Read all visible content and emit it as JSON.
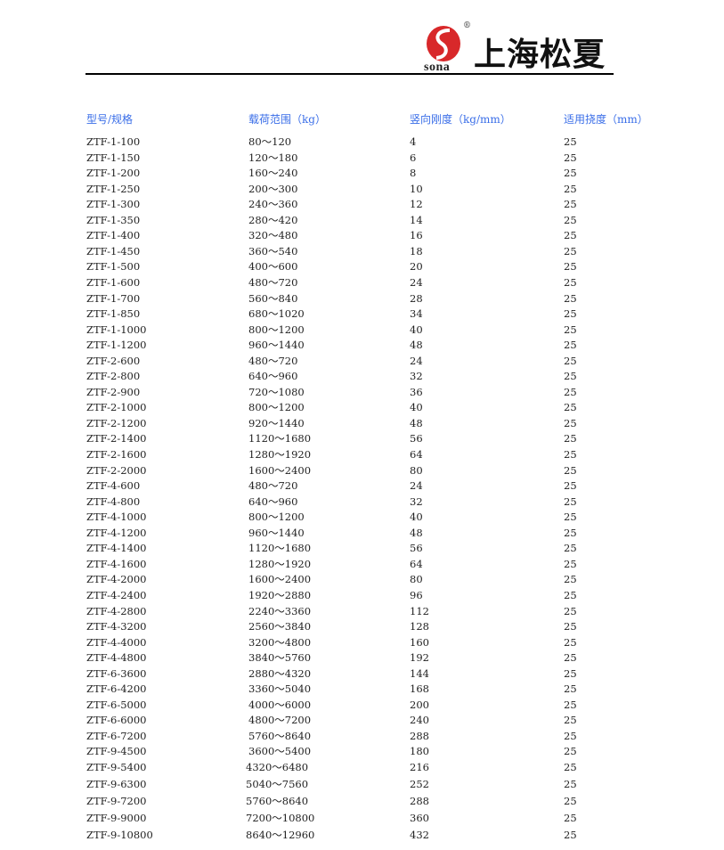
{
  "header": {
    "brand_text": "上海松夏",
    "logo_text": "sona",
    "registered": "®",
    "brand_color": "#d8282a"
  },
  "table": {
    "columns": [
      "型号/规格",
      "载荷范围（kg）",
      "竖向刚度（kg/mm）",
      "适用挠度（mm）"
    ],
    "header_color": "#3a6ee8",
    "rows": [
      [
        "ZTF-1-100",
        "80～120",
        "4",
        "25"
      ],
      [
        "ZTF-1-150",
        "120～180",
        "6",
        "25"
      ],
      [
        "ZTF-1-200",
        "160～240",
        "8",
        "25"
      ],
      [
        "ZTF-1-250",
        "200～300",
        "10",
        "25"
      ],
      [
        "ZTF-1-300",
        "240～360",
        "12",
        "25"
      ],
      [
        "ZTF-1-350",
        "280～420",
        "14",
        "25"
      ],
      [
        "ZTF-1-400",
        "320～480",
        "16",
        "25"
      ],
      [
        "ZTF-1-450",
        "360～540",
        "18",
        "25"
      ],
      [
        "ZTF-1-500",
        "400～600",
        "20",
        "25"
      ],
      [
        "ZTF-1-600",
        "480～720",
        "24",
        "25"
      ],
      [
        "ZTF-1-700",
        "560～840",
        "28",
        "25"
      ],
      [
        "ZTF-1-850",
        "680～1020",
        "34",
        "25"
      ],
      [
        "ZTF-1-1000",
        "800～1200",
        "40",
        "25"
      ],
      [
        "ZTF-1-1200",
        "960～1440",
        "48",
        "25"
      ],
      [
        "ZTF-2-600",
        "480～720",
        "24",
        "25"
      ],
      [
        "ZTF-2-800",
        "640～960",
        "32",
        "25"
      ],
      [
        "ZTF-2-900",
        "720～1080",
        "36",
        "25"
      ],
      [
        "ZTF-2-1000",
        "800～1200",
        "40",
        "25"
      ],
      [
        "ZTF-2-1200",
        "920～1440",
        "48",
        "25"
      ],
      [
        "ZTF-2-1400",
        "1120～1680",
        "56",
        "25"
      ],
      [
        "ZTF-2-1600",
        "1280～1920",
        "64",
        "25"
      ],
      [
        "ZTF-2-2000",
        "1600～2400",
        "80",
        "25"
      ],
      [
        "ZTF-4-600",
        "480～720",
        "24",
        "25"
      ],
      [
        "ZTF-4-800",
        "640～960",
        "32",
        "25"
      ],
      [
        "ZTF-4-1000",
        "800～1200",
        "40",
        "25"
      ],
      [
        "ZTF-4-1200",
        "960～1440",
        "48",
        "25"
      ],
      [
        "ZTF-4-1400",
        "1120～1680",
        "56",
        "25"
      ],
      [
        "ZTF-4-1600",
        "1280～1920",
        "64",
        "25"
      ],
      [
        "ZTF-4-2000",
        "1600～2400",
        "80",
        "25"
      ],
      [
        "ZTF-4-2400",
        "1920～2880",
        "96",
        "25"
      ],
      [
        "ZTF-4-2800",
        "2240～3360",
        "112",
        "25"
      ],
      [
        "ZTF-4-3200",
        "2560～3840",
        "128",
        "25"
      ],
      [
        "ZTF-4-4000",
        "3200～4800",
        "160",
        "25"
      ],
      [
        "ZTF-4-4800",
        "3840～5760",
        "192",
        "25"
      ],
      [
        "ZTF-6-3600",
        "2880～4320",
        "144",
        "25"
      ],
      [
        "ZTF-6-4200",
        "3360～5040",
        "168",
        "25"
      ],
      [
        "ZTF-6-5000",
        "4000～6000",
        "200",
        "25"
      ],
      [
        "ZTF-6-6000",
        "4800～7200",
        "240",
        "25"
      ],
      [
        "ZTF-6-7200",
        "5760～8640",
        "288",
        "25"
      ],
      [
        "ZTF-9-4500",
        "3600～5400",
        "180",
        "25"
      ],
      [
        "ZTF-9-5400",
        "4320～6480",
        "216",
        "25"
      ],
      [
        "ZTF-9-6300",
        "5040～7560",
        "252",
        "25"
      ],
      [
        "ZTF-9-7200",
        "5760～8640",
        "288",
        "25"
      ],
      [
        "ZTF-9-9000",
        "7200～10800",
        "360",
        "25"
      ],
      [
        "ZTF-9-10800",
        "8640～12960",
        "432",
        "25"
      ]
    ]
  }
}
